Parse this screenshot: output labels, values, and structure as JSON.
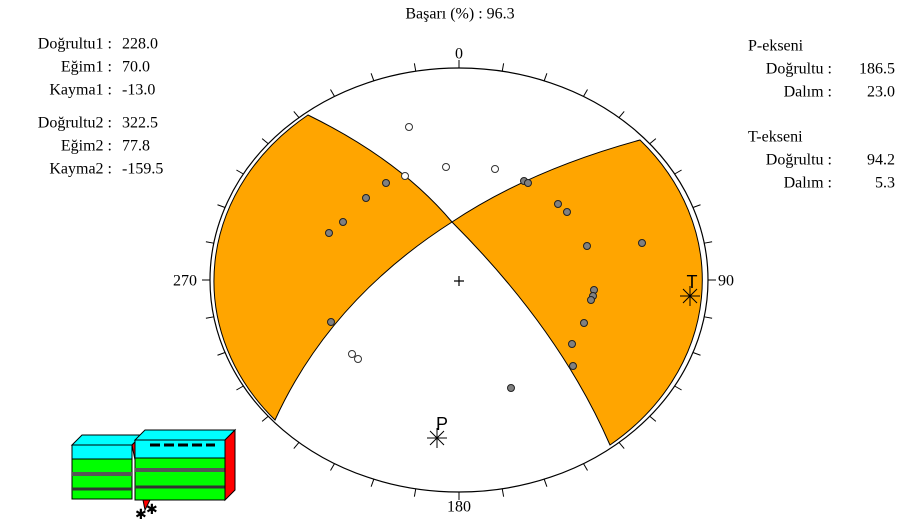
{
  "title": "Başarı (%) : 96.3",
  "plane1": [
    {
      "label": "Doğrultu1 :",
      "value": "228.0"
    },
    {
      "label": "Eğim1 :",
      "value": "70.0"
    },
    {
      "label": "Kayma1 :",
      "value": "-13.0"
    }
  ],
  "plane2": [
    {
      "label": "Doğrultu2 :",
      "value": "322.5"
    },
    {
      "label": "Eğim2 :",
      "value": "77.8"
    },
    {
      "label": "Kayma2 :",
      "value": "-159.5"
    }
  ],
  "p_axis": {
    "title": "P-ekseni",
    "rows": [
      {
        "label": "Doğrultu :",
        "value": "186.5"
      },
      {
        "label": "Dalım :",
        "value": "23.0"
      }
    ]
  },
  "t_axis": {
    "title": "T-ekseni",
    "rows": [
      {
        "label": "Doğrultu :",
        "value": "94.2"
      },
      {
        "label": "Dalım :",
        "value": "5.3"
      }
    ]
  },
  "directions": {
    "north": "0",
    "east": "90",
    "south": "180",
    "west": "270"
  },
  "markers": {
    "p": "P",
    "t": "T"
  }
}
